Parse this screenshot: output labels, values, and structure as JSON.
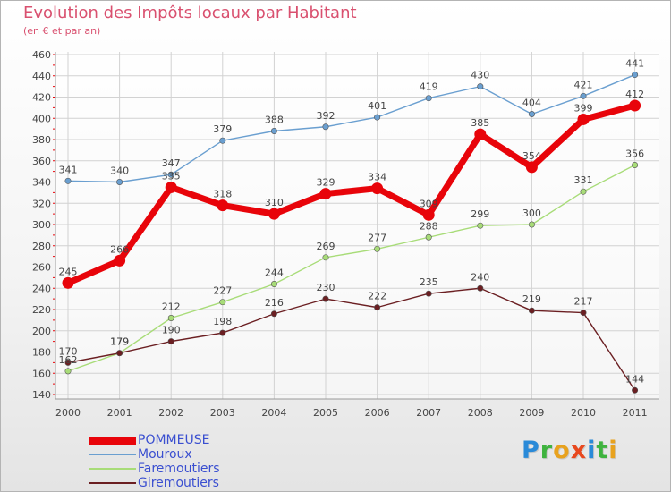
{
  "title": "Evolution des Impôts locaux par Habitant",
  "subtitle": "(en € et par an)",
  "logo": {
    "letters": [
      "P",
      "r",
      "o",
      "x",
      "i",
      "t",
      "i"
    ],
    "colors": [
      "#2a8ad8",
      "#3fb33f",
      "#e8a21e",
      "#e8481e",
      "#2a8ad8",
      "#3fb33f",
      "#e8a21e"
    ]
  },
  "chart_data": {
    "type": "line",
    "title": "Evolution des Impôts locaux par Habitant",
    "subtitle": "(en € et par an)",
    "x": [
      "2000",
      "2001",
      "2002",
      "2003",
      "2004",
      "2005",
      "2006",
      "2007",
      "2008",
      "2009",
      "2010",
      "2011"
    ],
    "ylim": [
      140,
      460
    ],
    "yticks": [
      140,
      160,
      180,
      200,
      220,
      240,
      260,
      280,
      300,
      320,
      340,
      360,
      380,
      400,
      420,
      440,
      460
    ],
    "grid": true,
    "legend_position": "bottom-left",
    "series": [
      {
        "name": "POMMEUSE",
        "color": "#e8040a",
        "values": [
          245,
          266,
          335,
          318,
          310,
          329,
          334,
          309,
          385,
          354,
          399,
          412
        ]
      },
      {
        "name": "Mouroux",
        "color": "#6a9fd0",
        "values": [
          341,
          340,
          347,
          379,
          388,
          392,
          401,
          419,
          430,
          404,
          421,
          441
        ]
      },
      {
        "name": "Faremoutiers",
        "color": "#a8dc78",
        "values": [
          162,
          179,
          212,
          227,
          244,
          269,
          277,
          288,
          299,
          300,
          331,
          356
        ]
      },
      {
        "name": "Giremoutiers",
        "color": "#6b1f22",
        "values": [
          170,
          179,
          190,
          198,
          216,
          230,
          222,
          235,
          240,
          219,
          217,
          144
        ]
      }
    ]
  }
}
